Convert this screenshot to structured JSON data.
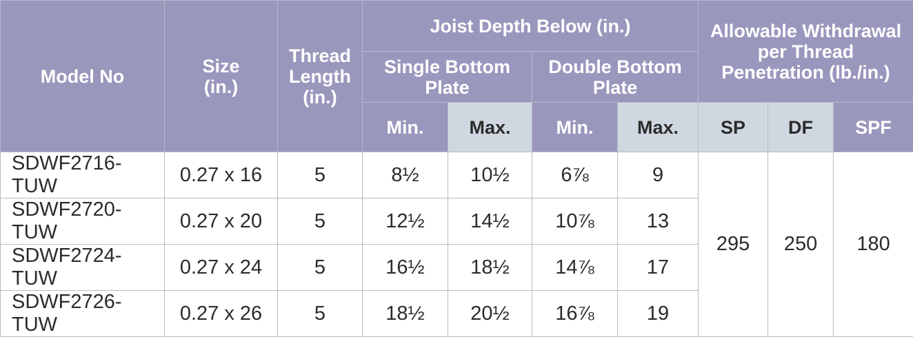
{
  "headers": {
    "model_no": "Model No",
    "size": "Size\n(in.)",
    "thread_length": "Thread\nLength\n(in.)",
    "joist_depth": "Joist Depth Below (in.)",
    "single_bottom_plate": "Single Bottom\nPlate",
    "double_bottom_plate": "Double Bottom\nPlate",
    "allowable_withdrawal": "Allowable Withdrawal\nper Thread\nPenetration (lb./in.)",
    "single_min": "Min.",
    "single_max": "Max.",
    "double_min": "Min.",
    "double_max": "Max.",
    "sp": "SP",
    "df": "DF",
    "spf": "SPF"
  },
  "rows": [
    {
      "model": "SDWF2716-TUW",
      "size": "0.27 x 16",
      "thread": "5",
      "s_min": "8½",
      "s_max": "10½",
      "d_min": "6⅞",
      "d_max": "9"
    },
    {
      "model": "SDWF2720-TUW",
      "size": "0.27 x 20",
      "thread": "5",
      "s_min": "12½",
      "s_max": "14½",
      "d_min": "10⅞",
      "d_max": "13"
    },
    {
      "model": "SDWF2724-TUW",
      "size": "0.27 x 24",
      "thread": "5",
      "s_min": "16½",
      "s_max": "18½",
      "d_min": "14⅞",
      "d_max": "17"
    },
    {
      "model": "SDWF2726-TUW",
      "size": "0.27 x 26",
      "thread": "5",
      "s_min": "18½",
      "s_max": "20½",
      "d_min": "16⅞",
      "d_max": "19"
    }
  ],
  "withdrawal": {
    "sp": "295",
    "df": "250",
    "spf": "180"
  },
  "colors": {
    "header_purple": "#9a97bd",
    "header_light": "#cfd8e1",
    "border": "#b9b9c6",
    "text": "#2b2b2b"
  }
}
